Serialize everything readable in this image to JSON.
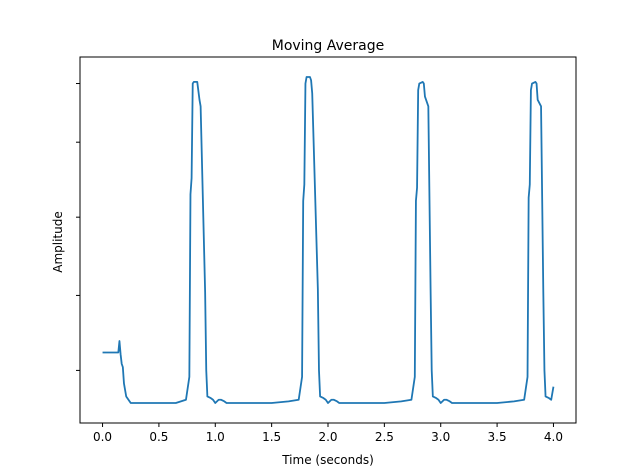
{
  "chart_data": {
    "type": "line",
    "title": "Moving Average",
    "xlabel": "Time (seconds)",
    "ylabel": "Amplitude",
    "xlim": [
      -0.2,
      4.2
    ],
    "ylim": [
      0,
      1
    ],
    "grid": false,
    "y_tick_labels_visible": false,
    "x_ticks": [
      {
        "value": 0.0,
        "label": "0.0"
      },
      {
        "value": 0.5,
        "label": "0.5"
      },
      {
        "value": 1.0,
        "label": "1.0"
      },
      {
        "value": 1.5,
        "label": "1.5"
      },
      {
        "value": 2.0,
        "label": "2.0"
      },
      {
        "value": 2.5,
        "label": "2.5"
      },
      {
        "value": 3.0,
        "label": "3.0"
      },
      {
        "value": 3.5,
        "label": "3.5"
      },
      {
        "value": 4.0,
        "label": "4.0"
      }
    ],
    "y_ticks": [
      0.1,
      0.33,
      0.57,
      0.8,
      0.98
    ],
    "series": [
      {
        "color": "#1f77b4",
        "x": [
          0.0,
          0.14,
          0.15,
          0.16,
          0.17,
          0.18,
          0.19,
          0.21,
          0.23,
          0.25,
          0.3,
          0.35,
          0.5,
          0.65,
          0.74,
          0.77,
          0.78,
          0.79,
          0.8,
          0.81,
          0.84,
          0.86,
          0.87,
          0.91,
          0.92,
          0.93,
          0.96,
          0.98,
          1.0,
          1.03,
          1.05,
          1.08,
          1.1,
          1.15,
          1.2,
          1.25,
          1.3,
          1.5,
          1.65,
          1.74,
          1.77,
          1.78,
          1.79,
          1.8,
          1.81,
          1.84,
          1.85,
          1.86,
          1.91,
          1.92,
          1.93,
          1.96,
          1.98,
          2.0,
          2.03,
          2.05,
          2.08,
          2.1,
          2.15,
          2.2,
          2.25,
          2.3,
          2.5,
          2.65,
          2.74,
          2.77,
          2.78,
          2.79,
          2.8,
          2.81,
          2.84,
          2.85,
          2.86,
          2.89,
          2.91,
          2.92,
          2.93,
          2.96,
          2.98,
          3.0,
          3.03,
          3.05,
          3.08,
          3.1,
          3.15,
          3.2,
          3.25,
          3.3,
          3.5,
          3.65,
          3.74,
          3.77,
          3.78,
          3.79,
          3.8,
          3.81,
          3.84,
          3.85,
          3.86,
          3.89,
          3.91,
          3.92,
          3.93,
          3.96,
          3.98,
          4.0
        ],
        "y": [
          0.155,
          0.155,
          0.19,
          0.15,
          0.12,
          0.11,
          0.06,
          0.02,
          0.01,
          0.0,
          0.0,
          0.0,
          0.0,
          0.0,
          0.01,
          0.08,
          0.64,
          0.69,
          0.98,
          0.985,
          0.985,
          0.93,
          0.91,
          0.34,
          0.1,
          0.02,
          0.015,
          0.01,
          0.0,
          0.01,
          0.01,
          0.005,
          0.0,
          0.0,
          0.0,
          0.0,
          0.0,
          0.0,
          0.005,
          0.01,
          0.08,
          0.62,
          0.67,
          0.98,
          1.0,
          1.0,
          0.99,
          0.95,
          0.35,
          0.1,
          0.02,
          0.015,
          0.01,
          0.0,
          0.01,
          0.01,
          0.005,
          0.0,
          0.0,
          0.0,
          0.0,
          0.0,
          0.0,
          0.005,
          0.01,
          0.08,
          0.62,
          0.66,
          0.96,
          0.98,
          0.985,
          0.98,
          0.94,
          0.91,
          0.35,
          0.1,
          0.02,
          0.015,
          0.01,
          0.0,
          0.01,
          0.01,
          0.005,
          0.0,
          0.0,
          0.0,
          0.0,
          0.0,
          0.0,
          0.005,
          0.01,
          0.08,
          0.63,
          0.67,
          0.96,
          0.98,
          0.985,
          0.98,
          0.93,
          0.91,
          0.34,
          0.1,
          0.02,
          0.015,
          0.01,
          0.05
        ]
      }
    ]
  }
}
